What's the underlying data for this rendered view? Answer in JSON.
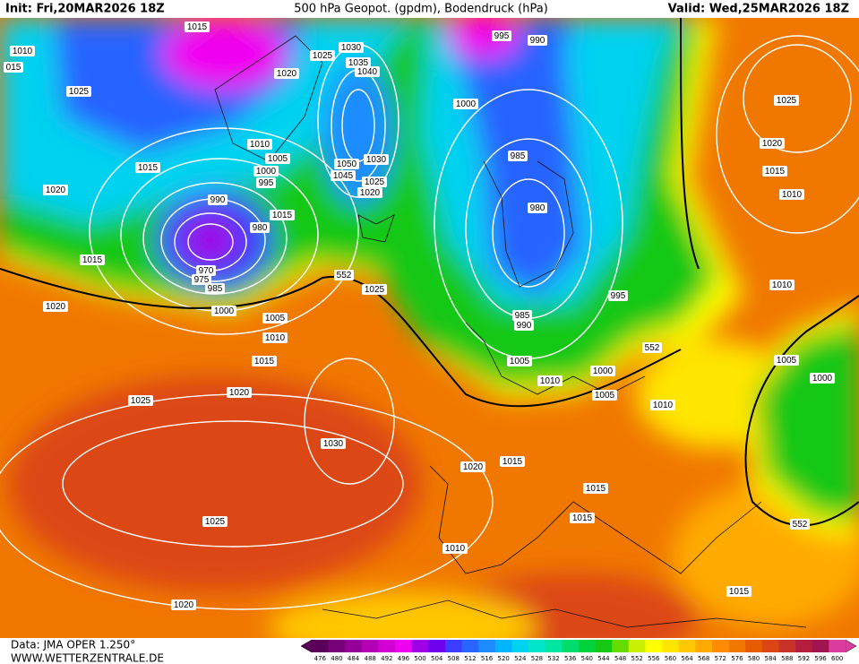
{
  "header": {
    "init": "Init: Fri,20MAR2026 18Z",
    "title": "500 hPa Geopot. (gpdm), Bodendruck (hPa)",
    "valid": "Valid: Wed,25MAR2026 18Z"
  },
  "footer": {
    "source": "Data: JMA OPER 1.250°",
    "site": "WWW.WETTERZENTRALE.DE"
  },
  "legend": {
    "labels": [
      "476",
      "480",
      "484",
      "488",
      "492",
      "496",
      "500",
      "504",
      "508",
      "512",
      "516",
      "520",
      "524",
      "528",
      "532",
      "536",
      "540",
      "544",
      "548",
      "552",
      "556",
      "560",
      "564",
      "568",
      "572",
      "576",
      "580",
      "584",
      "588",
      "592",
      "596",
      "600"
    ],
    "colors": [
      "#5a005a",
      "#780078",
      "#96009a",
      "#b400b4",
      "#d200d2",
      "#f000f0",
      "#a000e6",
      "#6e00f0",
      "#3c3cff",
      "#2864ff",
      "#1e8cff",
      "#00b4ff",
      "#00d2f0",
      "#00e6c8",
      "#00e6a0",
      "#00dc6e",
      "#00d23c",
      "#14c814",
      "#64dc00",
      "#c8f000",
      "#ffff00",
      "#ffe600",
      "#ffc800",
      "#ffaa00",
      "#ff8c00",
      "#f07800",
      "#e65a00",
      "#dc4614",
      "#c83228",
      "#b41e3c",
      "#a01450",
      "#dc3ca0"
    ]
  },
  "isobars": [
    "1015",
    "1010",
    "015",
    "1025",
    "1030",
    "1035",
    "1040",
    "1020",
    "995",
    "990",
    "1025",
    "1000",
    "1010",
    "1005",
    "1000",
    "995",
    "1015",
    "1050",
    "1045",
    "1030",
    "1025",
    "1020",
    "985",
    "1020",
    "990",
    "980",
    "1015",
    "980",
    "970",
    "975",
    "985",
    "1015",
    "552",
    "1025",
    "1020",
    "1000",
    "1005",
    "1010",
    "1015",
    "985",
    "990",
    "995",
    "552",
    "1005",
    "1000",
    "1010",
    "1005",
    "1010",
    "1020",
    "1025",
    "1030",
    "1020",
    "1015",
    "1015",
    "1015",
    "1025",
    "1010",
    "1020",
    "1015",
    "1025",
    "1020",
    "1015",
    "1010",
    "1010",
    "1005",
    "1000",
    "552"
  ]
}
